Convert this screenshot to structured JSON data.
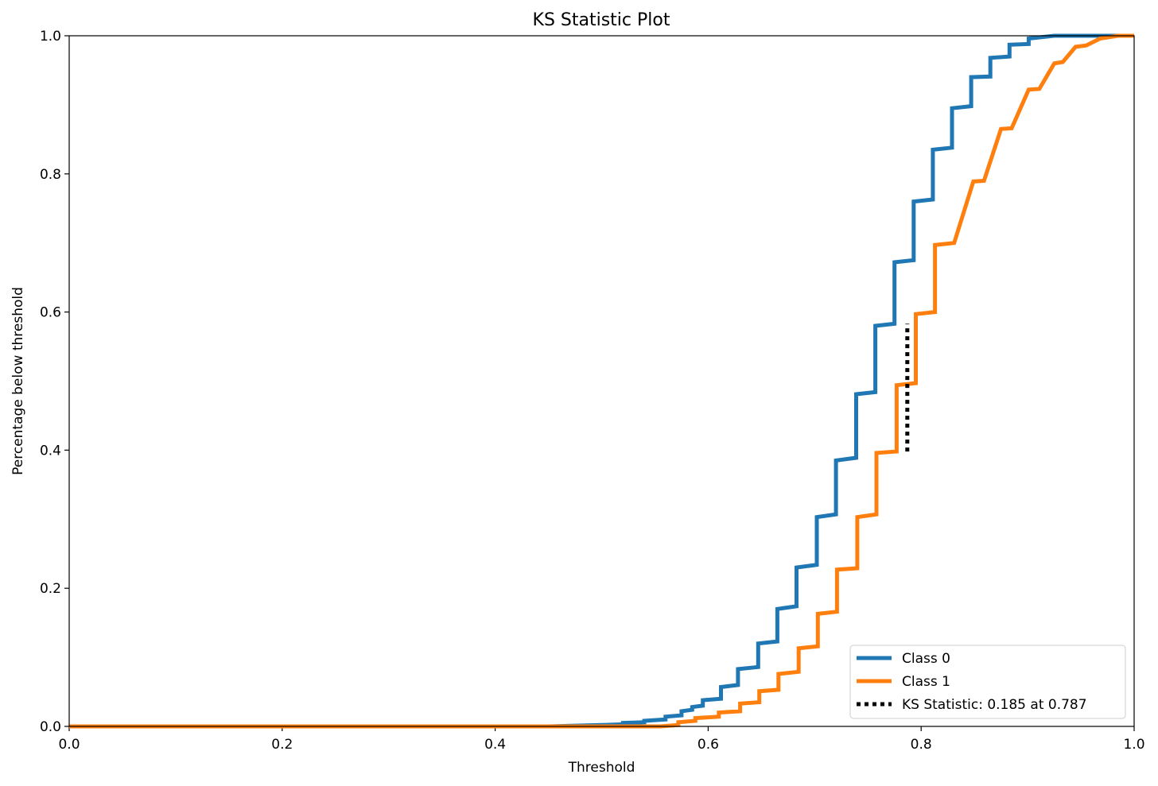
{
  "chart_data": {
    "type": "line",
    "title": "KS Statistic Plot",
    "xlabel": "Threshold",
    "ylabel": "Percentage below threshold",
    "xlim": [
      0.0,
      1.0
    ],
    "ylim": [
      0.0,
      1.0
    ],
    "x_ticks": [
      "0.0",
      "0.2",
      "0.4",
      "0.6",
      "0.8",
      "1.0"
    ],
    "y_ticks": [
      "0.0",
      "0.2",
      "0.4",
      "0.6",
      "0.8",
      "1.0"
    ],
    "grid": false,
    "legend_position": "lower-right",
    "series": [
      {
        "name": "Class 0",
        "color": "#1f77b4",
        "points": [
          [
            0.0,
            0.0
          ],
          [
            0.45,
            0.0
          ],
          [
            0.5,
            0.002
          ],
          [
            0.52,
            0.003
          ],
          [
            0.52,
            0.005
          ],
          [
            0.54,
            0.006
          ],
          [
            0.54,
            0.008
          ],
          [
            0.56,
            0.01
          ],
          [
            0.56,
            0.014
          ],
          [
            0.575,
            0.016
          ],
          [
            0.575,
            0.022
          ],
          [
            0.585,
            0.024
          ],
          [
            0.585,
            0.028
          ],
          [
            0.595,
            0.03
          ],
          [
            0.595,
            0.038
          ],
          [
            0.612,
            0.04
          ],
          [
            0.612,
            0.057
          ],
          [
            0.628,
            0.06
          ],
          [
            0.628,
            0.083
          ],
          [
            0.647,
            0.086
          ],
          [
            0.647,
            0.12
          ],
          [
            0.665,
            0.123
          ],
          [
            0.665,
            0.17
          ],
          [
            0.683,
            0.174
          ],
          [
            0.683,
            0.23
          ],
          [
            0.702,
            0.234
          ],
          [
            0.702,
            0.303
          ],
          [
            0.72,
            0.307
          ],
          [
            0.72,
            0.385
          ],
          [
            0.739,
            0.389
          ],
          [
            0.739,
            0.481
          ],
          [
            0.757,
            0.484
          ],
          [
            0.757,
            0.58
          ],
          [
            0.775,
            0.583
          ],
          [
            0.775,
            0.672
          ],
          [
            0.793,
            0.675
          ],
          [
            0.793,
            0.76
          ],
          [
            0.811,
            0.763
          ],
          [
            0.811,
            0.835
          ],
          [
            0.829,
            0.838
          ],
          [
            0.829,
            0.895
          ],
          [
            0.847,
            0.898
          ],
          [
            0.847,
            0.94
          ],
          [
            0.865,
            0.941
          ],
          [
            0.865,
            0.968
          ],
          [
            0.883,
            0.97
          ],
          [
            0.883,
            0.987
          ],
          [
            0.901,
            0.988
          ],
          [
            0.901,
            0.996
          ],
          [
            0.925,
            1.0
          ],
          [
            1.0,
            1.0
          ]
        ]
      },
      {
        "name": "Class 1",
        "color": "#ff7f0e",
        "points": [
          [
            0.0,
            0.0
          ],
          [
            0.555,
            0.0
          ],
          [
            0.572,
            0.002
          ],
          [
            0.572,
            0.006
          ],
          [
            0.588,
            0.008
          ],
          [
            0.588,
            0.012
          ],
          [
            0.61,
            0.014
          ],
          [
            0.61,
            0.02
          ],
          [
            0.63,
            0.022
          ],
          [
            0.63,
            0.033
          ],
          [
            0.648,
            0.035
          ],
          [
            0.648,
            0.051
          ],
          [
            0.666,
            0.053
          ],
          [
            0.666,
            0.076
          ],
          [
            0.685,
            0.079
          ],
          [
            0.685,
            0.113
          ],
          [
            0.703,
            0.116
          ],
          [
            0.703,
            0.163
          ],
          [
            0.721,
            0.166
          ],
          [
            0.721,
            0.227
          ],
          [
            0.74,
            0.229
          ],
          [
            0.74,
            0.303
          ],
          [
            0.758,
            0.307
          ],
          [
            0.758,
            0.396
          ],
          [
            0.777,
            0.398
          ],
          [
            0.777,
            0.494
          ],
          [
            0.795,
            0.497
          ],
          [
            0.795,
            0.597
          ],
          [
            0.813,
            0.6
          ],
          [
            0.813,
            0.697
          ],
          [
            0.831,
            0.7
          ],
          [
            0.849,
            0.789
          ],
          [
            0.859,
            0.79
          ],
          [
            0.875,
            0.865
          ],
          [
            0.885,
            0.866
          ],
          [
            0.901,
            0.922
          ],
          [
            0.911,
            0.923
          ],
          [
            0.925,
            0.96
          ],
          [
            0.933,
            0.962
          ],
          [
            0.945,
            0.984
          ],
          [
            0.955,
            0.986
          ],
          [
            0.968,
            0.996
          ],
          [
            0.985,
            1.0
          ],
          [
            1.0,
            1.0
          ]
        ]
      }
    ],
    "ks_statistic": {
      "label": "KS Statistic: 0.185 at 0.787",
      "value": 0.185,
      "at": 0.787,
      "y_low": 0.398,
      "y_high": 0.583,
      "color": "#000000"
    }
  }
}
